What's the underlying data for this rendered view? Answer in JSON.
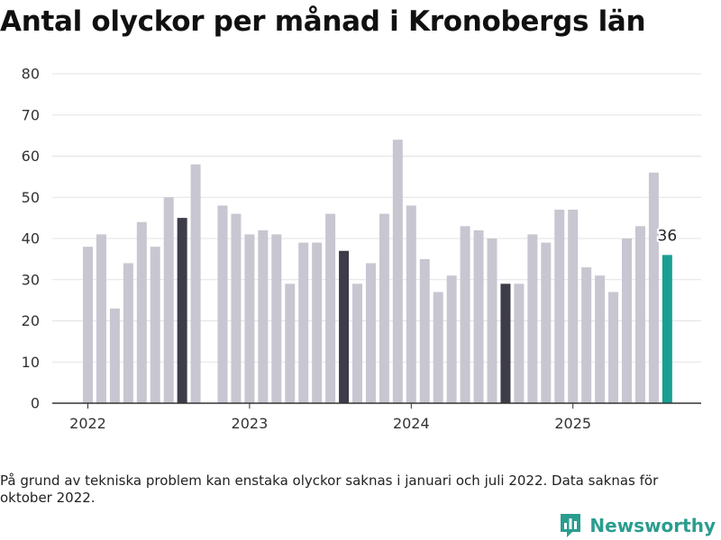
{
  "title": "Antal olyckor per månad i Kronobergs län",
  "footnote": "På grund av tekniska problem kan enstaka olyckor saknas i januari och juli 2022. Data saknas för oktober 2022.",
  "brand": {
    "name": "Newsworthy",
    "icon": "newsworthy-logo-icon",
    "color": "#2a9d8f"
  },
  "chart_data": {
    "type": "bar",
    "title": "Antal olyckor per månad i Kronobergs län",
    "xlabel": "",
    "ylabel": "",
    "ylim": [
      0,
      80
    ],
    "yticks": [
      0,
      10,
      20,
      30,
      40,
      50,
      60,
      70,
      80
    ],
    "xtick_labels": [
      "2022",
      "2023",
      "2024",
      "2025"
    ],
    "grid": true,
    "colors": {
      "default": "#c8c6d0",
      "highlight": "#3d3c49",
      "latest": "#1a9e93"
    },
    "months": [
      "2022-01",
      "2022-02",
      "2022-03",
      "2022-04",
      "2022-05",
      "2022-06",
      "2022-07",
      "2022-08",
      "2022-09",
      "2022-10",
      "2022-11",
      "2022-12",
      "2023-01",
      "2023-02",
      "2023-03",
      "2023-04",
      "2023-05",
      "2023-06",
      "2023-07",
      "2023-08",
      "2023-09",
      "2023-10",
      "2023-11",
      "2023-12",
      "2024-01",
      "2024-02",
      "2024-03",
      "2024-04",
      "2024-05",
      "2024-06",
      "2024-07",
      "2024-08",
      "2024-09",
      "2024-10",
      "2024-11",
      "2024-12",
      "2025-01",
      "2025-02",
      "2025-03",
      "2025-04",
      "2025-05",
      "2025-06",
      "2025-07",
      "2025-08"
    ],
    "values": [
      38,
      41,
      23,
      34,
      44,
      38,
      50,
      45,
      58,
      null,
      48,
      46,
      41,
      42,
      41,
      29,
      39,
      39,
      46,
      37,
      29,
      34,
      46,
      64,
      48,
      35,
      27,
      31,
      43,
      42,
      40,
      29,
      29,
      41,
      39,
      47,
      47,
      33,
      31,
      27,
      40,
      43,
      56,
      36
    ],
    "highlighted": [
      "2022-08",
      "2023-08",
      "2024-08"
    ],
    "latest": "2025-08",
    "annotations": [
      {
        "month": "2025-08",
        "text": "36"
      }
    ]
  }
}
